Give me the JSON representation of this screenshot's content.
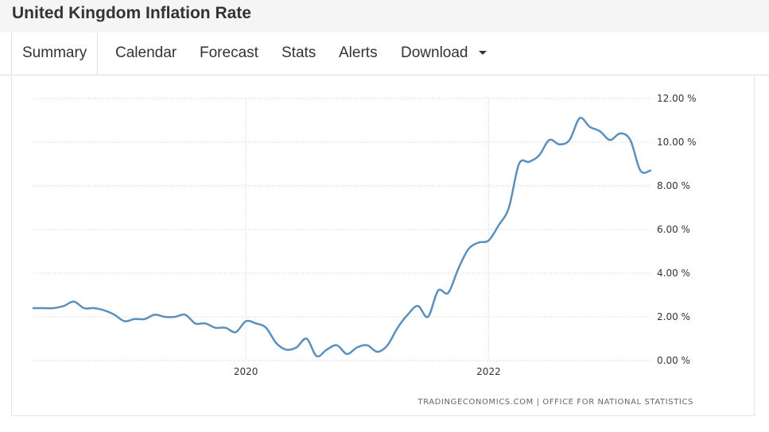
{
  "header": {
    "title": "United Kingdom Inflation Rate"
  },
  "tabs": [
    {
      "label": "Summary",
      "active": true
    },
    {
      "label": "Calendar"
    },
    {
      "label": "Forecast"
    },
    {
      "label": "Stats"
    },
    {
      "label": "Alerts"
    },
    {
      "label": "Download",
      "dropdown": true
    }
  ],
  "icons": {
    "download_caret": "caret-down-icon"
  },
  "colors": {
    "line": "#5b8fbe",
    "grid": "#cccccc",
    "text": "#333333"
  },
  "source": "TRADINGECONOMICS.COM  |  OFFICE FOR NATIONAL STATISTICS",
  "chart_data": {
    "type": "line",
    "title": "",
    "xlabel": "",
    "ylabel": "",
    "y_ticks": [
      "0.00 %",
      "2.00 %",
      "4.00 %",
      "6.00 %",
      "8.00 %",
      "10.00 %",
      "12.00 %"
    ],
    "y_tick_values": [
      0,
      2,
      4,
      6,
      8,
      10,
      12
    ],
    "x_ticks": [
      "2020",
      "2022"
    ],
    "x_tick_values": [
      "2020-01",
      "2022-01"
    ],
    "ylim": [
      0,
      12
    ],
    "xlim": [
      "2018-04",
      "2023-05"
    ],
    "grid": true,
    "series": [
      {
        "x": [
          "2018-04",
          "2018-05",
          "2018-06",
          "2018-07",
          "2018-08",
          "2018-09",
          "2018-10",
          "2018-11",
          "2018-12",
          "2019-01",
          "2019-02",
          "2019-03",
          "2019-04",
          "2019-05",
          "2019-06",
          "2019-07",
          "2019-08",
          "2019-09",
          "2019-10",
          "2019-11",
          "2019-12",
          "2020-01",
          "2020-02",
          "2020-03",
          "2020-04",
          "2020-05",
          "2020-06",
          "2020-07",
          "2020-08",
          "2020-09",
          "2020-10",
          "2020-11",
          "2020-12",
          "2021-01",
          "2021-02",
          "2021-03",
          "2021-04",
          "2021-05",
          "2021-06",
          "2021-07",
          "2021-08",
          "2021-09",
          "2021-10",
          "2021-11",
          "2021-12",
          "2022-01",
          "2022-02",
          "2022-03",
          "2022-04",
          "2022-05",
          "2022-06",
          "2022-07",
          "2022-08",
          "2022-09",
          "2022-10",
          "2022-11",
          "2022-12",
          "2023-01",
          "2023-02",
          "2023-03",
          "2023-04",
          "2023-05"
        ],
        "values": [
          2.4,
          2.4,
          2.4,
          2.5,
          2.7,
          2.4,
          2.4,
          2.3,
          2.1,
          1.8,
          1.9,
          1.9,
          2.1,
          2.0,
          2.0,
          2.1,
          1.7,
          1.7,
          1.5,
          1.5,
          1.3,
          1.8,
          1.7,
          1.5,
          0.8,
          0.5,
          0.6,
          1.0,
          0.2,
          0.5,
          0.7,
          0.3,
          0.6,
          0.7,
          0.4,
          0.7,
          1.5,
          2.1,
          2.5,
          2.0,
          3.2,
          3.1,
          4.2,
          5.1,
          5.4,
          5.5,
          6.2,
          7.0,
          9.0,
          9.1,
          9.4,
          10.1,
          9.9,
          10.1,
          11.1,
          10.7,
          10.5,
          10.1,
          10.4,
          10.1,
          8.7,
          8.7
        ]
      }
    ]
  }
}
